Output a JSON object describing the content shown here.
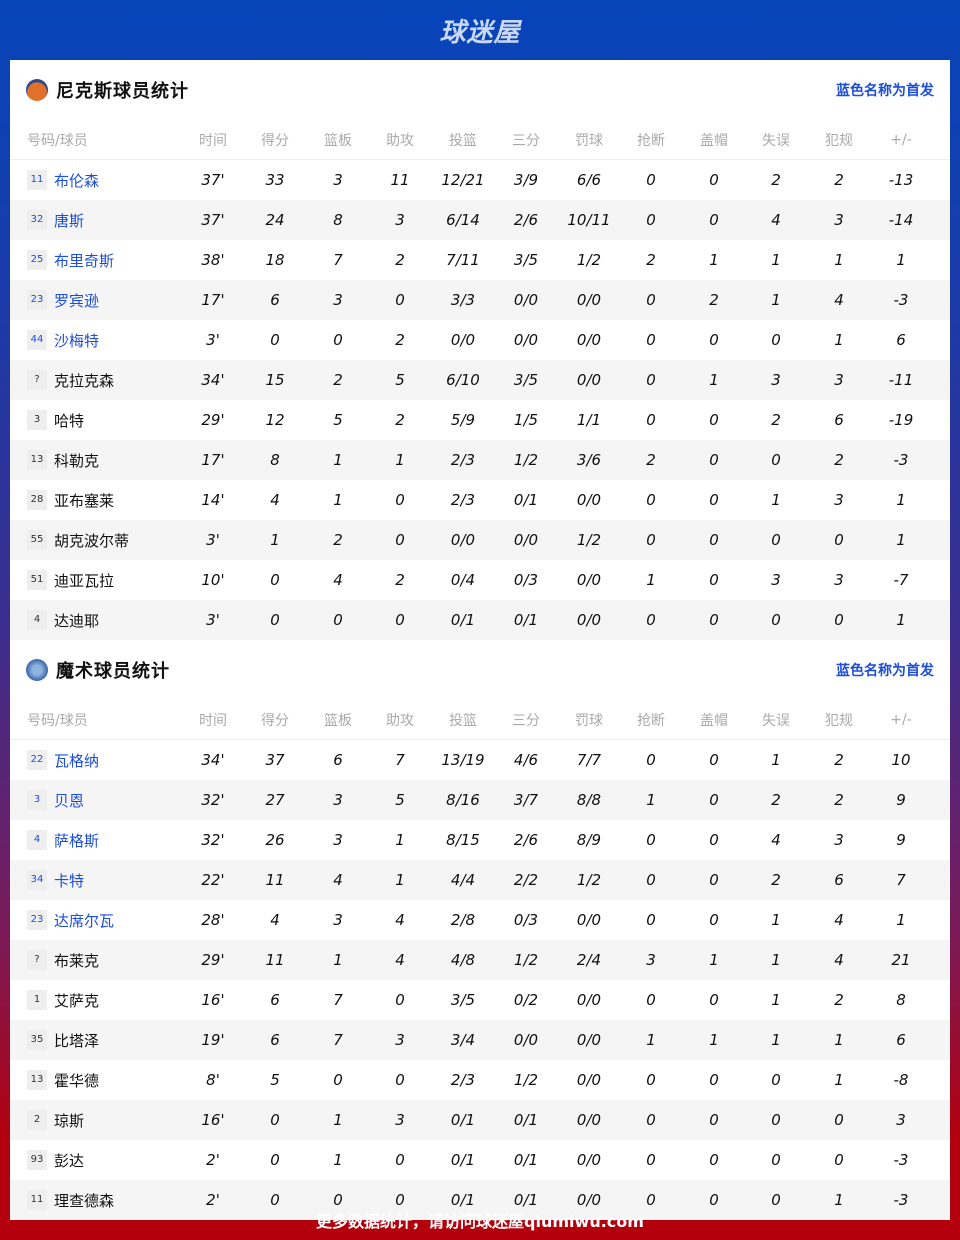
{
  "header": {
    "logo": "球迷屋"
  },
  "columns": [
    "号码/球员",
    "时间",
    "得分",
    "篮板",
    "助攻",
    "投篮",
    "三分",
    "罚球",
    "抢断",
    "盖帽",
    "失误",
    "犯规",
    "+/-"
  ],
  "note": "蓝色名称为首发",
  "colors": {
    "starter": "#1d4ed8",
    "knicks_icon": "#e0702a",
    "magic_icon": "#4a78b8"
  },
  "teams": [
    {
      "title": "尼克斯球员统计",
      "icon": "knicks-logo-icon",
      "starters": 5,
      "players": [
        [
          "11",
          "布伦森",
          "37'",
          "33",
          "3",
          "11",
          "12/21",
          "3/9",
          "6/6",
          "0",
          "0",
          "2",
          "2",
          "-13"
        ],
        [
          "32",
          "唐斯",
          "37'",
          "24",
          "8",
          "3",
          "6/14",
          "2/6",
          "10/11",
          "0",
          "0",
          "4",
          "3",
          "-14"
        ],
        [
          "25",
          "布里奇斯",
          "38'",
          "18",
          "7",
          "2",
          "7/11",
          "3/5",
          "1/2",
          "2",
          "1",
          "1",
          "1",
          "1"
        ],
        [
          "23",
          "罗宾逊",
          "17'",
          "6",
          "3",
          "0",
          "3/3",
          "0/0",
          "0/0",
          "0",
          "2",
          "1",
          "4",
          "-3"
        ],
        [
          "44",
          "沙梅特",
          "3'",
          "0",
          "0",
          "2",
          "0/0",
          "0/0",
          "0/0",
          "0",
          "0",
          "0",
          "1",
          "6"
        ],
        [
          "?",
          "克拉克森",
          "34'",
          "15",
          "2",
          "5",
          "6/10",
          "3/5",
          "0/0",
          "0",
          "1",
          "3",
          "3",
          "-11"
        ],
        [
          "3",
          "哈特",
          "29'",
          "12",
          "5",
          "2",
          "5/9",
          "1/5",
          "1/1",
          "0",
          "0",
          "2",
          "6",
          "-19"
        ],
        [
          "13",
          "科勒克",
          "17'",
          "8",
          "1",
          "1",
          "2/3",
          "1/2",
          "3/6",
          "2",
          "0",
          "0",
          "2",
          "-3"
        ],
        [
          "28",
          "亚布塞莱",
          "14'",
          "4",
          "1",
          "0",
          "2/3",
          "0/1",
          "0/0",
          "0",
          "0",
          "1",
          "3",
          "1"
        ],
        [
          "55",
          "胡克波尔蒂",
          "3'",
          "1",
          "2",
          "0",
          "0/0",
          "0/0",
          "1/2",
          "0",
          "0",
          "0",
          "0",
          "1"
        ],
        [
          "51",
          "迪亚瓦拉",
          "10'",
          "0",
          "4",
          "2",
          "0/4",
          "0/3",
          "0/0",
          "1",
          "0",
          "3",
          "3",
          "-7"
        ],
        [
          "4",
          "达迪耶",
          "3'",
          "0",
          "0",
          "0",
          "0/1",
          "0/1",
          "0/0",
          "0",
          "0",
          "0",
          "0",
          "1"
        ]
      ]
    },
    {
      "title": "魔术球员统计",
      "icon": "magic-logo-icon",
      "starters": 5,
      "players": [
        [
          "22",
          "瓦格纳",
          "34'",
          "37",
          "6",
          "7",
          "13/19",
          "4/6",
          "7/7",
          "0",
          "0",
          "1",
          "2",
          "10"
        ],
        [
          "3",
          "贝恩",
          "32'",
          "27",
          "3",
          "5",
          "8/16",
          "3/7",
          "8/8",
          "1",
          "0",
          "2",
          "2",
          "9"
        ],
        [
          "4",
          "萨格斯",
          "32'",
          "26",
          "3",
          "1",
          "8/15",
          "2/6",
          "8/9",
          "0",
          "0",
          "4",
          "3",
          "9"
        ],
        [
          "34",
          "卡特",
          "22'",
          "11",
          "4",
          "1",
          "4/4",
          "2/2",
          "1/2",
          "0",
          "0",
          "2",
          "6",
          "7"
        ],
        [
          "23",
          "达席尔瓦",
          "28'",
          "4",
          "3",
          "4",
          "2/8",
          "0/3",
          "0/0",
          "0",
          "0",
          "1",
          "4",
          "1"
        ],
        [
          "?",
          "布莱克",
          "29'",
          "11",
          "1",
          "4",
          "4/8",
          "1/2",
          "2/4",
          "3",
          "1",
          "1",
          "4",
          "21"
        ],
        [
          "1",
          "艾萨克",
          "16'",
          "6",
          "7",
          "0",
          "3/5",
          "0/2",
          "0/0",
          "0",
          "0",
          "1",
          "2",
          "8"
        ],
        [
          "35",
          "比塔泽",
          "19'",
          "6",
          "7",
          "3",
          "3/4",
          "0/0",
          "0/0",
          "1",
          "1",
          "1",
          "1",
          "6"
        ],
        [
          "13",
          "霍华德",
          "8'",
          "5",
          "0",
          "0",
          "2/3",
          "1/2",
          "0/0",
          "0",
          "0",
          "0",
          "1",
          "-8"
        ],
        [
          "2",
          "琼斯",
          "16'",
          "0",
          "1",
          "3",
          "0/1",
          "0/1",
          "0/0",
          "0",
          "0",
          "0",
          "0",
          "3"
        ],
        [
          "93",
          "彭达",
          "2'",
          "0",
          "1",
          "0",
          "0/1",
          "0/1",
          "0/0",
          "0",
          "0",
          "0",
          "0",
          "-3"
        ],
        [
          "11",
          "理查德森",
          "2'",
          "0",
          "0",
          "0",
          "0/1",
          "0/1",
          "0/0",
          "0",
          "0",
          "0",
          "1",
          "-3"
        ]
      ]
    }
  ],
  "footer": "更多数据统计，请访问球迷屋qiumiwu.com"
}
